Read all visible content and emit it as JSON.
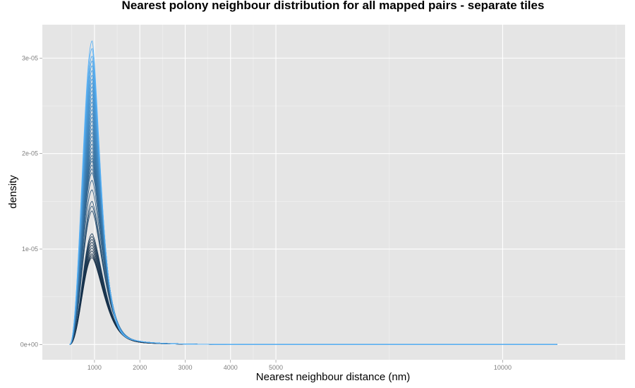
{
  "chart_data": {
    "type": "line",
    "title": "Nearest polony neighbour distribution for all mapped pairs - separate tiles",
    "xlabel": "Nearest neighbour distance (nm)",
    "ylabel": "density",
    "xlim": [
      -150,
      12700
    ],
    "ylim": [
      -1.6e-06,
      3.35e-05
    ],
    "x_ticks": [
      1000,
      2000,
      3000,
      4000,
      5000,
      10000
    ],
    "x_tick_labels": [
      "1000",
      "2000",
      "3000",
      "4000",
      "5000",
      "10000"
    ],
    "y_ticks": [
      0,
      1e-05,
      2e-05,
      3e-05
    ],
    "y_tick_labels": [
      "0e+00",
      "1e-05",
      "2e-05",
      "3e-05"
    ],
    "grid": true,
    "background": "#e5e5e5",
    "grid_color": "#ffffff",
    "color_gradient": [
      "#132b43",
      "#56b1f7"
    ],
    "curve_shape": {
      "peak_x": 950,
      "x_start": 450,
      "x_end": 11200,
      "peak_values_min": 9.1e-06,
      "peak_values_max": 3.18e-05,
      "n_series": 48
    },
    "series_peaks": [
      3.18e-05,
      3.1e-05,
      3.02e-05,
      2.97e-05,
      2.92e-05,
      2.87e-05,
      2.82e-05,
      2.78e-05,
      2.74e-05,
      2.7e-05,
      2.66e-05,
      2.62e-05,
      2.58e-05,
      2.54e-05,
      2.5e-05,
      2.46e-05,
      2.42e-05,
      2.38e-05,
      2.34e-05,
      2.3e-05,
      2.26e-05,
      2.22e-05,
      2.18e-05,
      2.14e-05,
      2.1e-05,
      2.06e-05,
      2.02e-05,
      1.98e-05,
      1.95e-05,
      1.92e-05,
      1.88e-05,
      1.84e-05,
      1.8e-05,
      1.72e-05,
      1.62e-05,
      1.5e-05,
      1.4e-05,
      1.16e-05,
      1.13e-05,
      1.1e-05,
      1.07e-05,
      1.04e-05,
      1.01e-05,
      9.8e-06,
      9.5e-06,
      9.3e-06,
      9.1e-06,
      1.45e-05
    ]
  }
}
